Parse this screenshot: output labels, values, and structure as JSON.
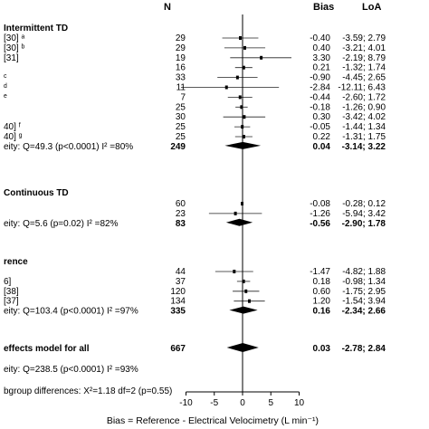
{
  "header": {
    "n_label": "N",
    "bias_label": "Bias",
    "loa_label": "LoA"
  },
  "chart_data": {
    "type": "forest",
    "xlabel": "Bias = Reference - Electrical Velocimetry (L min⁻¹)",
    "xlim": [
      -10,
      10
    ],
    "xticks": [
      "-10",
      "-5",
      "0",
      "5",
      "10"
    ],
    "reference_line": 0,
    "subgroup_difference": "bgroup differences: X²=1.18 df=2 (p=0.55)",
    "groups": [
      {
        "title": "Intermittent TD",
        "studies": [
          {
            "label": "[30] ᵃ",
            "n": "29",
            "bias": -0.4,
            "bias_text": "-0.40",
            "lo": -3.59,
            "hi": 2.79,
            "loa_text": "-3.59; 2.79"
          },
          {
            "label": "[30] ᵇ",
            "n": "29",
            "bias": 0.4,
            "bias_text": "0.40",
            "lo": -3.21,
            "hi": 4.01,
            "loa_text": "-3.21; 4.01"
          },
          {
            "label": "[31]",
            "n": "19",
            "bias": 3.3,
            "bias_text": "3.30",
            "lo": -2.19,
            "hi": 8.79,
            "loa_text": "-2.19; 8.79"
          },
          {
            "label": "",
            "n": "16",
            "bias": 0.21,
            "bias_text": "0.21",
            "lo": -1.32,
            "hi": 1.74,
            "loa_text": "-1.32; 1.74"
          },
          {
            "label": "ᶜ",
            "n": "33",
            "bias": -0.9,
            "bias_text": "-0.90",
            "lo": -4.45,
            "hi": 2.65,
            "loa_text": "-4.45; 2.65"
          },
          {
            "label": "ᵈ",
            "n": "11",
            "bias": -2.84,
            "bias_text": "-2.84",
            "lo": -12.11,
            "hi": 6.43,
            "loa_text": "-12.11; 6.43"
          },
          {
            "label": "ᵉ",
            "n": "7",
            "bias": -0.44,
            "bias_text": "-0.44",
            "lo": -2.6,
            "hi": 1.72,
            "loa_text": "-2.60; 1.72"
          },
          {
            "label": "",
            "n": "25",
            "bias": -0.18,
            "bias_text": "-0.18",
            "lo": -1.26,
            "hi": 0.9,
            "loa_text": "-1.26; 0.90"
          },
          {
            "label": "",
            "n": "30",
            "bias": 0.3,
            "bias_text": "0.30",
            "lo": -3.42,
            "hi": 4.02,
            "loa_text": "-3.42; 4.02"
          },
          {
            "label": "40] ᶠ",
            "n": "25",
            "bias": -0.05,
            "bias_text": "-0.05",
            "lo": -1.44,
            "hi": 1.34,
            "loa_text": "-1.44; 1.34"
          },
          {
            "label": "40] ᵍ",
            "n": "25",
            "bias": 0.22,
            "bias_text": "0.22",
            "lo": -1.31,
            "hi": 1.75,
            "loa_text": "-1.31; 1.75"
          }
        ],
        "pooled": {
          "label": "eity: Q=49.3 (p<0.0001) I² =80%",
          "n": "249",
          "bias": 0.04,
          "bias_text": "0.04",
          "lo": -3.14,
          "hi": 3.22,
          "loa_text": "-3.14; 3.22"
        }
      },
      {
        "title": "Continuous TD",
        "studies": [
          {
            "label": "",
            "n": "60",
            "bias": -0.08,
            "bias_text": "-0.08",
            "lo": -0.28,
            "hi": 0.12,
            "loa_text": "-0.28; 0.12"
          },
          {
            "label": "",
            "n": "23",
            "bias": -1.26,
            "bias_text": "-1.26",
            "lo": -5.94,
            "hi": 3.42,
            "loa_text": "-5.94; 3.42"
          }
        ],
        "pooled": {
          "label": "eity: Q=5.6 (p=0.02) I² =82%",
          "n": "83",
          "bias": -0.56,
          "bias_text": "-0.56",
          "lo": -2.9,
          "hi": 1.78,
          "loa_text": "-2.90; 1.78"
        }
      },
      {
        "title": "rence",
        "studies": [
          {
            "label": "",
            "n": "44",
            "bias": -1.47,
            "bias_text": "-1.47",
            "lo": -4.82,
            "hi": 1.88,
            "loa_text": "-4.82; 1.88"
          },
          {
            "label": "6]",
            "n": "37",
            "bias": 0.18,
            "bias_text": "0.18",
            "lo": -0.98,
            "hi": 1.34,
            "loa_text": "-0.98; 1.34"
          },
          {
            "label": "[38]",
            "n": "120",
            "bias": 0.6,
            "bias_text": "0.60",
            "lo": -1.75,
            "hi": 2.95,
            "loa_text": "-1.75; 2.95"
          },
          {
            "label": "[37]",
            "n": "134",
            "bias": 1.2,
            "bias_text": "1.20",
            "lo": -1.54,
            "hi": 3.94,
            "loa_text": "-1.54; 3.94"
          }
        ],
        "pooled": {
          "label": "eity: Q=103.4 (p<0.0001) I² =97%",
          "n": "335",
          "bias": 0.16,
          "bias_text": "0.16",
          "lo": -2.34,
          "hi": 2.66,
          "loa_text": "-2.34; 2.66"
        }
      }
    ],
    "overall": {
      "title": "effects model for all",
      "label": "eity: Q=238.5 (p<0.0001) I² =93%",
      "n": "667",
      "bias": 0.03,
      "bias_text": "0.03",
      "lo": -2.78,
      "hi": 2.84,
      "loa_text": "-2.78; 2.84"
    }
  }
}
